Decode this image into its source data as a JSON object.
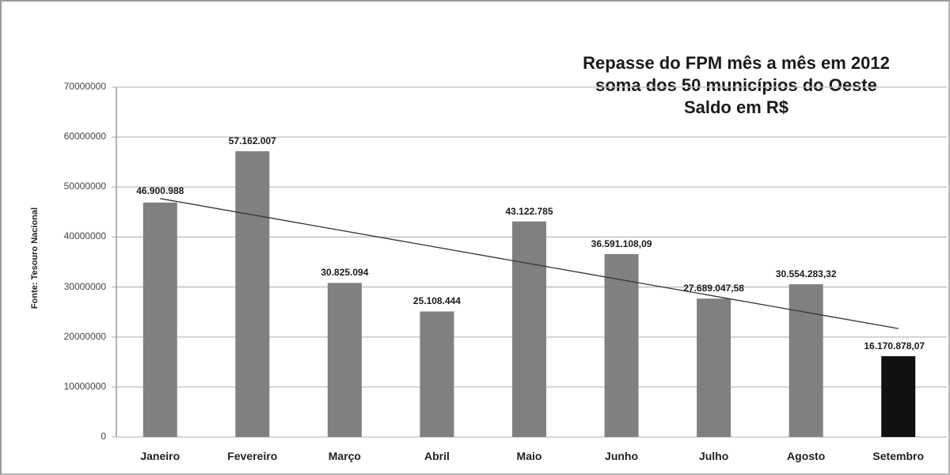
{
  "chart_data": {
    "type": "bar",
    "title": "Repasse do FPM mês a mês em 2012 soma dos 50 municípios do Oeste Saldo em R$",
    "title_lines": [
      "Repasse do FPM mês a mês em 2012",
      "soma dos 50 municípios do Oeste",
      "Saldo em R$"
    ],
    "xlabel": "",
    "ylabel": "Fonte: Tesouro Nacional",
    "ylim": [
      0,
      70000000
    ],
    "yticks": [
      "0",
      "10000000",
      "20000000",
      "30000000",
      "40000000",
      "50000000",
      "60000000",
      "70000000"
    ],
    "grid": true,
    "legend": "none",
    "categories": [
      "Janeiro",
      "Fevereiro",
      "Março",
      "Abril",
      "Maio",
      "Junho",
      "Julho",
      "Agosto",
      "Setembro"
    ],
    "values": [
      46900988,
      57162007,
      30825094,
      25108444,
      43122785,
      36591108.09,
      27689047.58,
      30554283.32,
      16170878.07
    ],
    "data_labels": [
      "46.900.988",
      "57.162.007",
      "30.825.094",
      "25.108.444",
      "43.122.785",
      "36.591.108,09",
      "27.689.047,58",
      "30.554.283,32",
      "16.170.878,07"
    ],
    "bar_colors": [
      "#808080",
      "#808080",
      "#808080",
      "#808080",
      "#808080",
      "#808080",
      "#808080",
      "#808080",
      "#111111"
    ],
    "trendline": {
      "type": "linear",
      "start_value": 47700000,
      "end_value": 21700000,
      "color": "#333333"
    }
  }
}
